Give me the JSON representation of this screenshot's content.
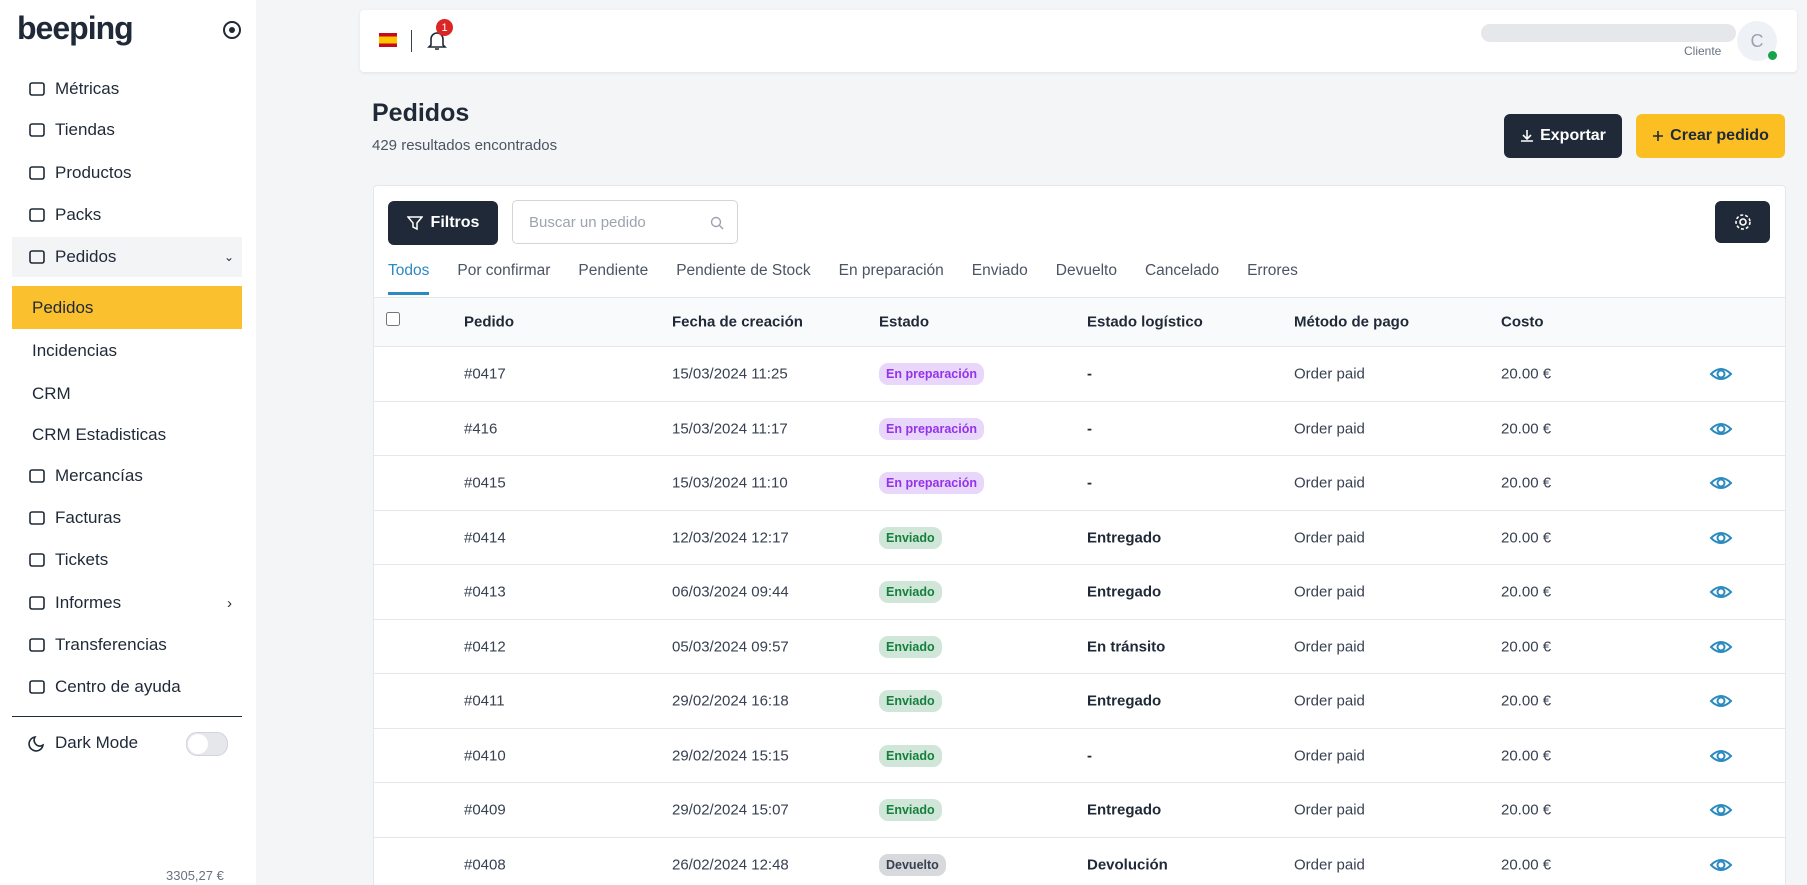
{
  "sidebar": {
    "logo": "beeping",
    "nav": [
      "Métricas",
      "Tiendas",
      "Productos",
      "Packs",
      "Pedidos"
    ],
    "subnav": [
      "Pedidos",
      "Incidencias",
      "CRM",
      "CRM Estadisticas"
    ],
    "nav2": [
      "Mercancías",
      "Facturas",
      "Tickets",
      "Informes",
      "Transferencias",
      "Centro de ayuda"
    ],
    "dark_mode": "Dark Mode",
    "balance": "3305,27 €"
  },
  "header": {
    "notifications": "1",
    "role": "Cliente",
    "avatar": "C"
  },
  "page": {
    "title": "Pedidos",
    "subtitle": "429 resultados encontrados",
    "export": "Exportar",
    "create": "Crear pedido"
  },
  "toolbar": {
    "filters": "Filtros",
    "search_placeholder": "Buscar un pedido",
    "tabs": [
      "Todos",
      "Por confirmar",
      "Pendiente",
      "Pendiente de Stock",
      "En preparación",
      "Enviado",
      "Devuelto",
      "Cancelado",
      "Errores"
    ]
  },
  "table": {
    "columns": [
      "Pedido",
      "Fecha de creación",
      "Estado",
      "Estado logístico",
      "Método de pago",
      "Costo"
    ],
    "rows": [
      {
        "pedido": "#0417",
        "fecha": "15/03/2024 11:25",
        "estado": "En preparación",
        "estado_color": "#9333ea",
        "logistico": "-",
        "metodo": "Order paid",
        "costo": "20.00 €"
      },
      {
        "pedido": "#416",
        "fecha": "15/03/2024 11:17",
        "estado": "En preparación",
        "estado_color": "#9333ea",
        "logistico": "-",
        "metodo": "Order paid",
        "costo": "20.00 €"
      },
      {
        "pedido": "#0415",
        "fecha": "15/03/2024 11:10",
        "estado": "En preparación",
        "estado_color": "#9333ea",
        "logistico": "-",
        "metodo": "Order paid",
        "costo": "20.00 €"
      },
      {
        "pedido": "#0414",
        "fecha": "12/03/2024 12:17",
        "estado": "Enviado",
        "estado_color": "#15803d",
        "logistico": "Entregado",
        "metodo": "Order paid",
        "costo": "20.00 €"
      },
      {
        "pedido": "#0413",
        "fecha": "06/03/2024 09:44",
        "estado": "Enviado",
        "estado_color": "#15803d",
        "logistico": "Entregado",
        "metodo": "Order paid",
        "costo": "20.00 €"
      },
      {
        "pedido": "#0412",
        "fecha": "05/03/2024 09:57",
        "estado": "Enviado",
        "estado_color": "#15803d",
        "logistico": "En tránsito",
        "metodo": "Order paid",
        "costo": "20.00 €"
      },
      {
        "pedido": "#0411",
        "fecha": "29/02/2024 16:18",
        "estado": "Enviado",
        "estado_color": "#15803d",
        "logistico": "Entregado",
        "metodo": "Order paid",
        "costo": "20.00 €"
      },
      {
        "pedido": "#0410",
        "fecha": "29/02/2024 15:15",
        "estado": "Enviado",
        "estado_color": "#15803d",
        "logistico": "-",
        "metodo": "Order paid",
        "costo": "20.00 €"
      },
      {
        "pedido": "#0409",
        "fecha": "29/02/2024 15:07",
        "estado": "Enviado",
        "estado_color": "#15803d",
        "logistico": "Entregado",
        "metodo": "Order paid",
        "costo": "20.00 €"
      },
      {
        "pedido": "#0408",
        "fecha": "26/02/2024 12:48",
        "estado": "Devuelto",
        "estado_color": "#374151",
        "logistico": "Devolución",
        "metodo": "Order paid",
        "costo": "20.00 €"
      }
    ]
  }
}
